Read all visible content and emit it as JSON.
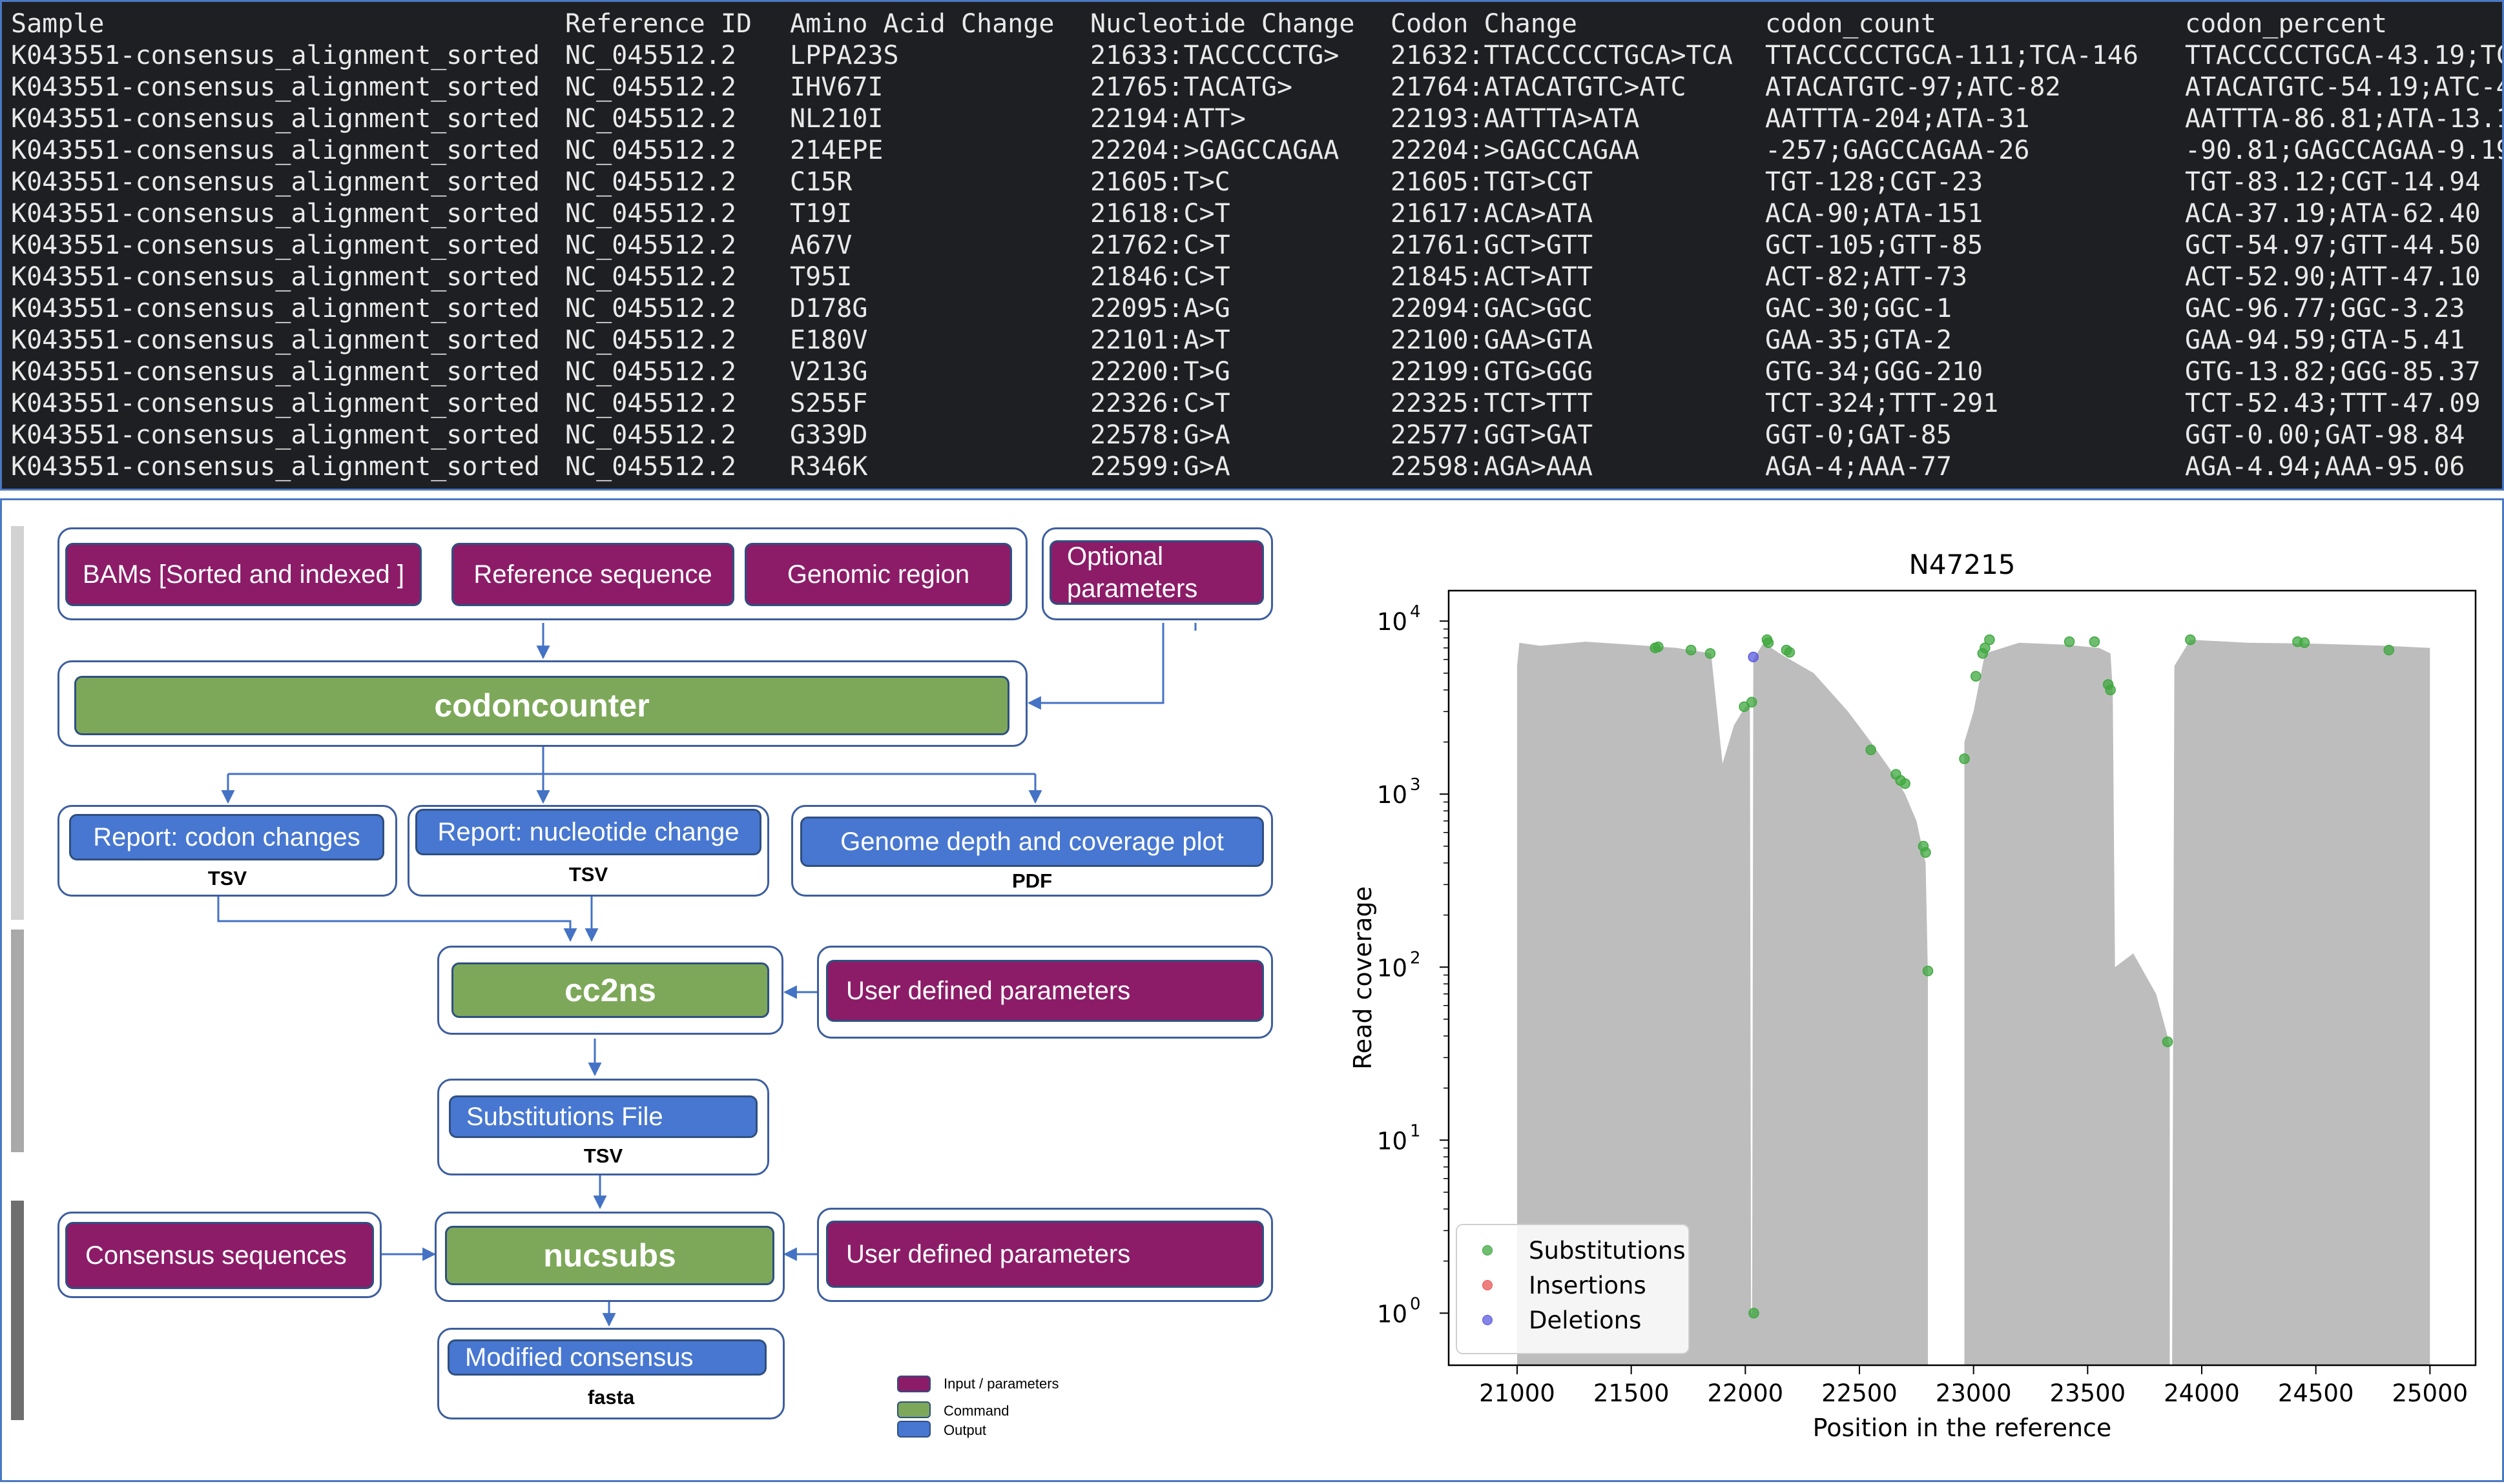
{
  "table": {
    "headers": [
      "Sample",
      "Reference ID",
      "Amino Acid Change",
      "Nucleotide Change",
      "Codon Change",
      "codon_count",
      "codon_percent"
    ],
    "rows": [
      [
        "K043551-consensus_alignment_sorted",
        "NC_045512.2",
        "LPPA23S",
        "21633:TACCCCCTG>",
        "21632:TTACCCCCTGCA>TCA",
        "TTACCCCCTGCA-111;TCA-146",
        "TTACCCCCTGCA-43.19;TC"
      ],
      [
        "K043551-consensus_alignment_sorted",
        "NC_045512.2",
        "IHV67I",
        "21765:TACATG>",
        "21764:ATACATGTC>ATC",
        "ATACATGTC-97;ATC-82",
        "ATACATGTC-54.19;ATC-4"
      ],
      [
        "K043551-consensus_alignment_sorted",
        "NC_045512.2",
        "NL210I",
        "22194:ATT>",
        "22193:AATTTA>ATA",
        "AATTTA-204;ATA-31",
        "AATTTA-86.81;ATA-13.1"
      ],
      [
        "K043551-consensus_alignment_sorted",
        "NC_045512.2",
        "214EPE",
        "22204:>GAGCCAGAA",
        "22204:>GAGCCAGAA",
        "-257;GAGCCAGAA-26",
        "-90.81;GAGCCAGAA-9.19"
      ],
      [
        "K043551-consensus_alignment_sorted",
        "NC_045512.2",
        "C15R",
        "21605:T>C",
        "21605:TGT>CGT",
        "TGT-128;CGT-23",
        "TGT-83.12;CGT-14.94"
      ],
      [
        "K043551-consensus_alignment_sorted",
        "NC_045512.2",
        "T19I",
        "21618:C>T",
        "21617:ACA>ATA",
        "ACA-90;ATA-151",
        "ACA-37.19;ATA-62.40"
      ],
      [
        "K043551-consensus_alignment_sorted",
        "NC_045512.2",
        "A67V",
        "21762:C>T",
        "21761:GCT>GTT",
        "GCT-105;GTT-85",
        "GCT-54.97;GTT-44.50"
      ],
      [
        "K043551-consensus_alignment_sorted",
        "NC_045512.2",
        "T95I",
        "21846:C>T",
        "21845:ACT>ATT",
        "ACT-82;ATT-73",
        "ACT-52.90;ATT-47.10"
      ],
      [
        "K043551-consensus_alignment_sorted",
        "NC_045512.2",
        "D178G",
        "22095:A>G",
        "22094:GAC>GGC",
        "GAC-30;GGC-1",
        "GAC-96.77;GGC-3.23"
      ],
      [
        "K043551-consensus_alignment_sorted",
        "NC_045512.2",
        "E180V",
        "22101:A>T",
        "22100:GAA>GTA",
        "GAA-35;GTA-2",
        "GAA-94.59;GTA-5.41"
      ],
      [
        "K043551-consensus_alignment_sorted",
        "NC_045512.2",
        "V213G",
        "22200:T>G",
        "22199:GTG>GGG",
        "GTG-34;GGG-210",
        "GTG-13.82;GGG-85.37"
      ],
      [
        "K043551-consensus_alignment_sorted",
        "NC_045512.2",
        "S255F",
        "22326:C>T",
        "22325:TCT>TTT",
        "TCT-324;TTT-291",
        "TCT-52.43;TTT-47.09"
      ],
      [
        "K043551-consensus_alignment_sorted",
        "NC_045512.2",
        "G339D",
        "22578:G>A",
        "22577:GGT>GAT",
        "GGT-0;GAT-85",
        "GGT-0.00;GAT-98.84"
      ],
      [
        "K043551-consensus_alignment_sorted",
        "NC_045512.2",
        "R346K",
        "22599:G>A",
        "22598:AGA>AAA",
        "AGA-4;AAA-77",
        "AGA-4.94;AAA-95.06"
      ]
    ]
  },
  "diagram": {
    "inputs": {
      "bams": "BAMs [Sorted and indexed ]",
      "reference": "Reference sequence",
      "region": "Genomic region",
      "optional": "Optional parameters"
    },
    "codoncounter": "codoncounter",
    "reports": {
      "codon": "Report: codon changes",
      "codon_fmt": "TSV",
      "nucleotide": "Report: nucleotide change",
      "nucleotide_fmt": "TSV",
      "depth": "Genome depth and coverage plot",
      "depth_fmt": "PDF"
    },
    "cc2ns": "cc2ns",
    "user_params_1": "User defined parameters",
    "subs_file": "Substitutions File",
    "subs_fmt": "TSV",
    "consensus_seqs": "Consensus sequences",
    "nucsubs": "nucsubs",
    "user_params_2": "User defined parameters",
    "modified": "Modified consensus",
    "modified_fmt": "fasta",
    "legend": {
      "input": "Input / parameters",
      "command": "Command",
      "output": "Output"
    },
    "colors": {
      "input": "#8c1c68",
      "command": "#7da85a",
      "output": "#4777d0"
    }
  },
  "chart_data": {
    "type": "area",
    "title": "N47215",
    "xlabel": "Position in the reference",
    "ylabel": "Read coverage",
    "yscale": "log",
    "xlim": [
      20700,
      25200
    ],
    "ylim": [
      0.5,
      15000
    ],
    "xticks": [
      21000,
      21500,
      22000,
      22500,
      23000,
      23500,
      24000,
      24500,
      25000
    ],
    "yticks": [
      1,
      10,
      100,
      1000,
      10000
    ],
    "ytick_labels": [
      {
        "base": "10",
        "exp": "0"
      },
      {
        "base": "10",
        "exp": "1"
      },
      {
        "base": "10",
        "exp": "2"
      },
      {
        "base": "10",
        "exp": "3"
      },
      {
        "base": "10",
        "exp": "4"
      }
    ],
    "coverage": {
      "name": "coverage",
      "color": "#bdbdbd",
      "points": [
        [
          21000,
          5500
        ],
        [
          21010,
          7500
        ],
        [
          21100,
          7200
        ],
        [
          21300,
          7600
        ],
        [
          21500,
          7300
        ],
        [
          21700,
          7000
        ],
        [
          21850,
          6500
        ],
        [
          21900,
          1500
        ],
        [
          21950,
          2500
        ],
        [
          22000,
          3200
        ],
        [
          22020,
          3300
        ],
        [
          22025,
          1
        ],
        [
          22030,
          1
        ],
        [
          22035,
          6000
        ],
        [
          22080,
          7500
        ],
        [
          22150,
          6500
        ],
        [
          22300,
          5000
        ],
        [
          22450,
          3000
        ],
        [
          22550,
          2000
        ],
        [
          22650,
          1300
        ],
        [
          22700,
          1000
        ],
        [
          22750,
          700
        ],
        [
          22790,
          400
        ],
        [
          22800,
          90
        ],
        [
          22800,
          0.5
        ],
        [
          22960,
          0.5
        ],
        [
          22960,
          2000
        ],
        [
          23000,
          3000
        ],
        [
          23050,
          6500
        ],
        [
          23200,
          7500
        ],
        [
          23400,
          7300
        ],
        [
          23550,
          7000
        ],
        [
          23600,
          6500
        ],
        [
          23610,
          4000
        ],
        [
          23620,
          100
        ],
        [
          23700,
          120
        ],
        [
          23800,
          70
        ],
        [
          23850,
          40
        ],
        [
          23860,
          35
        ],
        [
          23860,
          0.5
        ],
        [
          23870,
          0.5
        ],
        [
          23880,
          5500
        ],
        [
          23950,
          7800
        ],
        [
          24200,
          7500
        ],
        [
          24500,
          7400
        ],
        [
          24800,
          7200
        ],
        [
          25000,
          7000
        ],
        [
          25000,
          0.5
        ]
      ]
    },
    "series": [
      {
        "name": "Substitutions",
        "color": "#3fa83f",
        "points": [
          [
            21605,
            7000
          ],
          [
            21618,
            7100
          ],
          [
            21762,
            6800
          ],
          [
            21846,
            6500
          ],
          [
            21995,
            3200
          ],
          [
            22028,
            3400
          ],
          [
            22037,
            1
          ],
          [
            22095,
            7800
          ],
          [
            22101,
            7500
          ],
          [
            22180,
            6800
          ],
          [
            22194,
            6600
          ],
          [
            22550,
            1800
          ],
          [
            22660,
            1300
          ],
          [
            22680,
            1200
          ],
          [
            22700,
            1150
          ],
          [
            22780,
            500
          ],
          [
            22790,
            460
          ],
          [
            22800,
            95
          ],
          [
            22960,
            1600
          ],
          [
            23010,
            4800
          ],
          [
            23040,
            6500
          ],
          [
            23050,
            7000
          ],
          [
            23070,
            7800
          ],
          [
            23420,
            7600
          ],
          [
            23530,
            7600
          ],
          [
            23590,
            4300
          ],
          [
            23600,
            4000
          ],
          [
            23850,
            37
          ],
          [
            23950,
            7800
          ],
          [
            24420,
            7600
          ],
          [
            24450,
            7500
          ],
          [
            24820,
            6800
          ]
        ]
      },
      {
        "name": "Insertions",
        "color": "#e85454",
        "points": []
      },
      {
        "name": "Deletions",
        "color": "#5a5ae0",
        "points": [
          [
            22035,
            6200
          ]
        ]
      }
    ],
    "legend_position": "lower-left"
  }
}
